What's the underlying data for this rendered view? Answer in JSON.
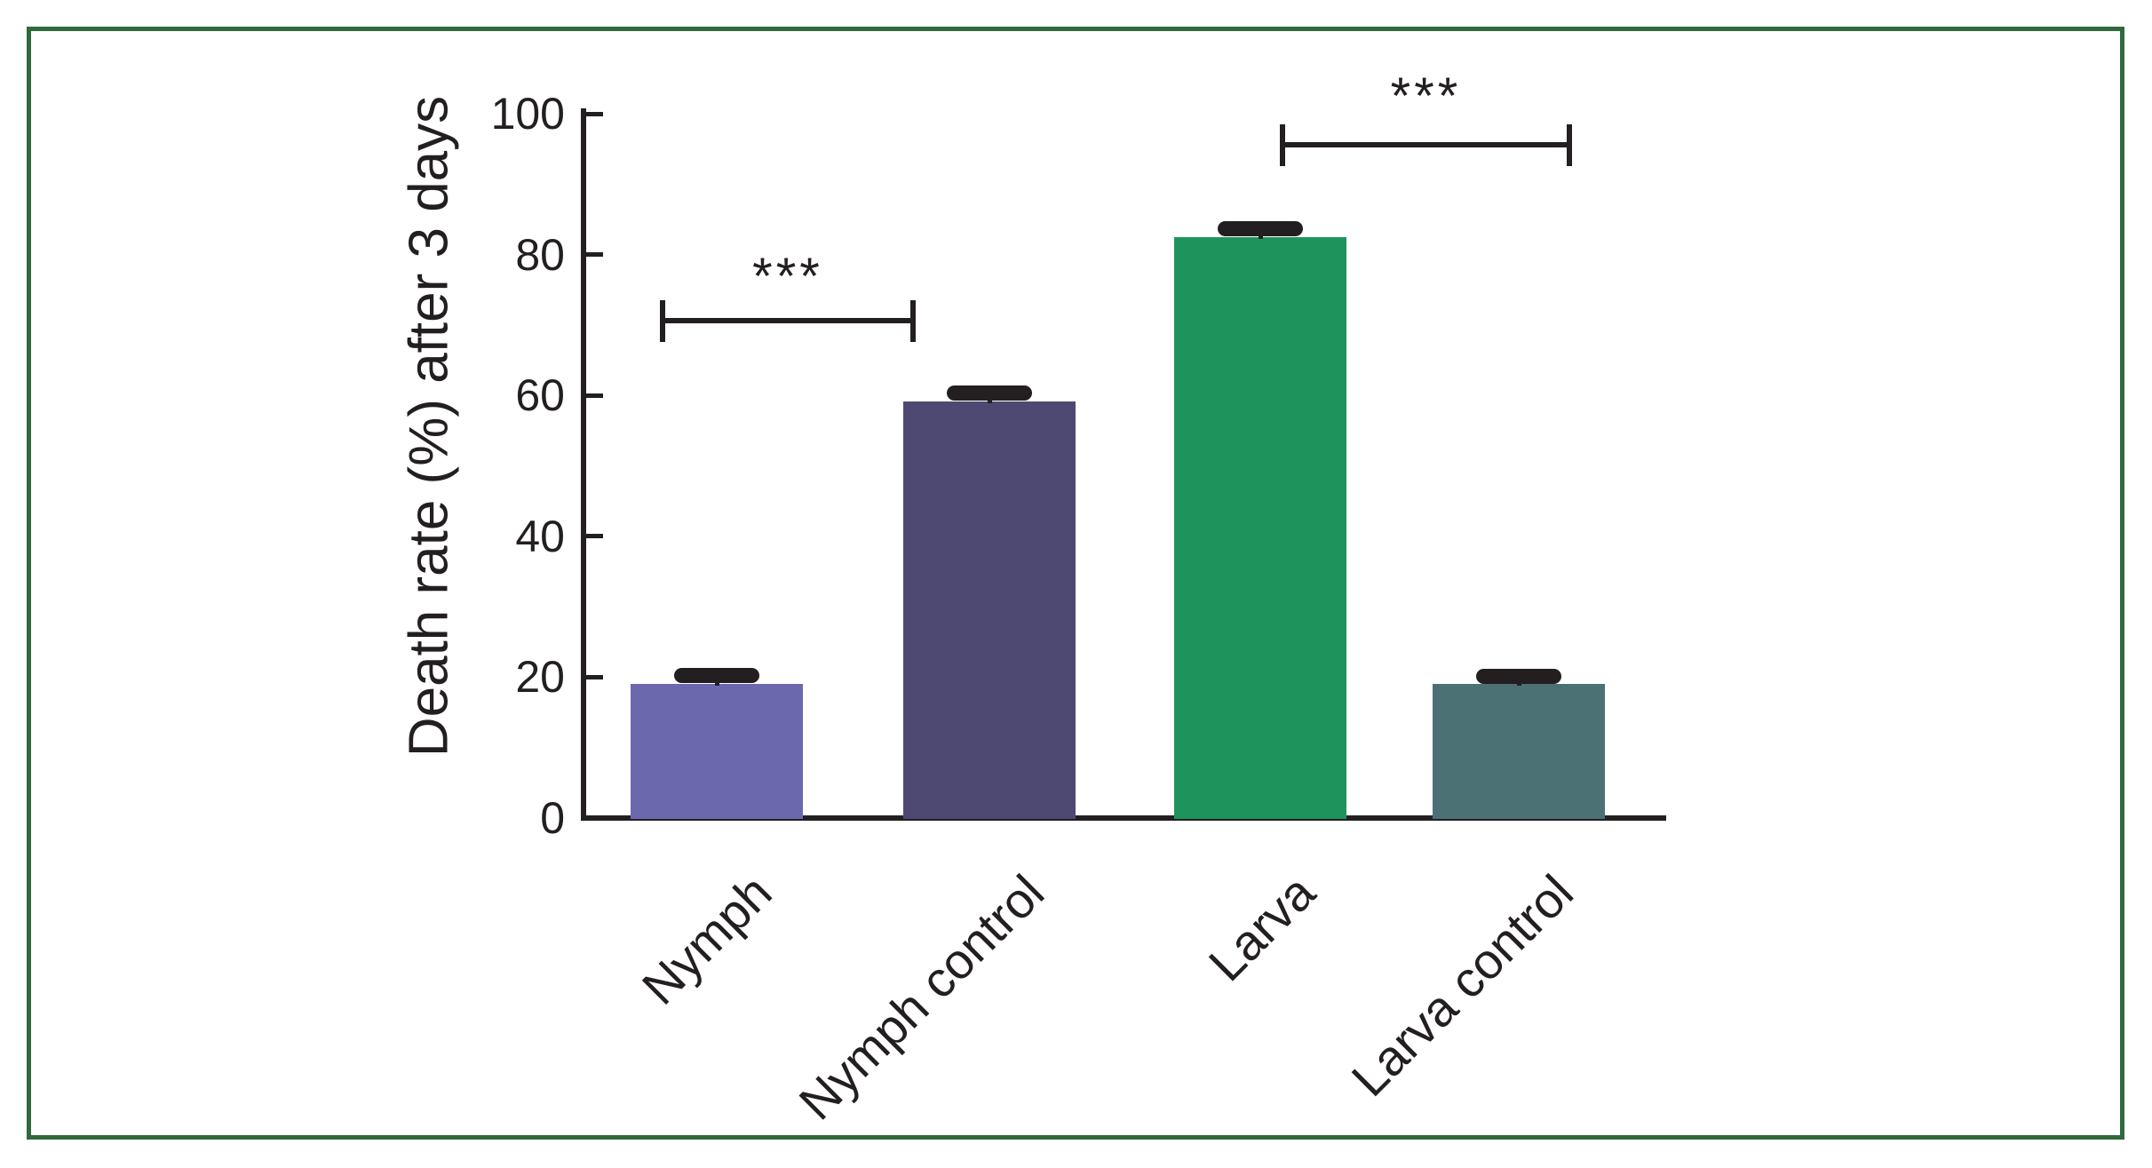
{
  "figure": {
    "border_color": "#30693c",
    "background_color": "#ffffff",
    "text_color": "#231f20"
  },
  "chart_data": {
    "type": "bar",
    "title": "",
    "xlabel": "",
    "ylabel": "Death rate (%) after 3 days",
    "categories": [
      "Nymph",
      "Nymph control",
      "Larva",
      "Larva control"
    ],
    "values": [
      19,
      59.2,
      82.5,
      19
    ],
    "errors": [
      1.2,
      1.1,
      1.2,
      1.1
    ],
    "bar_colors": [
      "#6c68ae",
      "#4e4973",
      "#1e945c",
      "#4c7174"
    ],
    "ylim": [
      0,
      100
    ],
    "yticks": [
      0,
      20,
      40,
      60,
      80,
      100
    ],
    "grid": false,
    "legend": null,
    "significance": [
      {
        "between": [
          "Nymph",
          "Nymph control"
        ],
        "label": "***"
      },
      {
        "between": [
          "Larva",
          "Larva control"
        ],
        "label": "***"
      }
    ]
  }
}
